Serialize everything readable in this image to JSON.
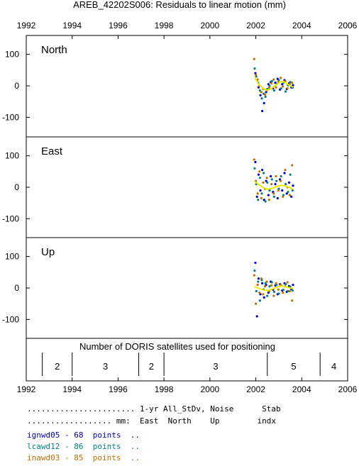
{
  "chart_data": {
    "type": "scatter",
    "title": "AREB_42202S006: Residuals to linear motion (mm)",
    "x_ticks": [
      "1992",
      "1994",
      "1996",
      "1998",
      "2000",
      "2002",
      "2004",
      "2006"
    ],
    "xlim": [
      1992,
      2006
    ],
    "y_ticks": [
      "100",
      "0",
      "-100"
    ],
    "panels": [
      {
        "label": "North",
        "ylim": [
          -160,
          160
        ],
        "series": [
          {
            "color": "#0000c0",
            "points": [
              [
                2001.98,
                40
              ],
              [
                2002.05,
                18
              ],
              [
                2002.12,
                -5
              ],
              [
                2002.2,
                -30
              ],
              [
                2002.28,
                -80
              ],
              [
                2002.36,
                -55
              ],
              [
                2002.45,
                -20
              ],
              [
                2002.55,
                5
              ],
              [
                2002.65,
                12
              ],
              [
                2002.75,
                -8
              ],
              [
                2002.85,
                10
              ],
              [
                2002.95,
                22
              ],
              [
                2003.05,
                -12
              ],
              [
                2003.15,
                5
              ],
              [
                2003.25,
                18
              ],
              [
                2003.35,
                -10
              ],
              [
                2003.45,
                8
              ],
              [
                2003.55,
                -5
              ],
              [
                2003.62,
                2
              ]
            ]
          },
          {
            "color": "#008080",
            "points": [
              [
                2001.95,
                55
              ],
              [
                2002.02,
                30
              ],
              [
                2002.1,
                10
              ],
              [
                2002.18,
                -15
              ],
              [
                2002.26,
                -40
              ],
              [
                2002.34,
                -25
              ],
              [
                2002.42,
                -35
              ],
              [
                2002.5,
                -10
              ],
              [
                2002.6,
                0
              ],
              [
                2002.7,
                15
              ],
              [
                2002.8,
                -15
              ],
              [
                2002.9,
                5
              ],
              [
                2003.0,
                18
              ],
              [
                2003.1,
                -8
              ],
              [
                2003.2,
                10
              ],
              [
                2003.3,
                -18
              ],
              [
                2003.4,
                2
              ],
              [
                2003.5,
                12
              ],
              [
                2003.6,
                -6
              ]
            ]
          },
          {
            "color": "#c07000",
            "points": [
              [
                2001.93,
                85
              ],
              [
                2002.0,
                35
              ],
              [
                2002.08,
                20
              ],
              [
                2002.16,
                0
              ],
              [
                2002.24,
                -20
              ],
              [
                2002.32,
                -10
              ],
              [
                2002.4,
                -28
              ],
              [
                2002.48,
                -15
              ],
              [
                2002.58,
                -5
              ],
              [
                2002.68,
                8
              ],
              [
                2002.78,
                20
              ],
              [
                2002.88,
                -5
              ],
              [
                2002.98,
                12
              ],
              [
                2003.08,
                25
              ],
              [
                2003.18,
                -2
              ],
              [
                2003.28,
                15
              ],
              [
                2003.38,
                -8
              ],
              [
                2003.48,
                5
              ],
              [
                2003.58,
                10
              ]
            ]
          }
        ],
        "fit": [
          [
            2001.95,
            28
          ],
          [
            2002.1,
            8
          ],
          [
            2002.3,
            -8
          ],
          [
            2002.5,
            -14
          ],
          [
            2002.7,
            -8
          ],
          [
            2002.9,
            4
          ],
          [
            2003.1,
            14
          ],
          [
            2003.3,
            10
          ],
          [
            2003.5,
            0
          ],
          [
            2003.62,
            -4
          ]
        ]
      },
      {
        "label": "East",
        "ylim": [
          -160,
          160
        ],
        "series": [
          {
            "color": "#0000c0",
            "points": [
              [
                2001.98,
                80
              ],
              [
                2002.05,
                -30
              ],
              [
                2002.12,
                40
              ],
              [
                2002.2,
                -10
              ],
              [
                2002.28,
                55
              ],
              [
                2002.36,
                -40
              ],
              [
                2002.45,
                20
              ],
              [
                2002.55,
                -25
              ],
              [
                2002.65,
                35
              ],
              [
                2002.75,
                -15
              ],
              [
                2002.85,
                10
              ],
              [
                2002.95,
                -35
              ],
              [
                2003.05,
                25
              ],
              [
                2003.15,
                -10
              ],
              [
                2003.25,
                45
              ],
              [
                2003.35,
                -20
              ],
              [
                2003.45,
                15
              ],
              [
                2003.55,
                -30
              ],
              [
                2003.62,
                5
              ]
            ]
          },
          {
            "color": "#008080",
            "points": [
              [
                2001.95,
                60
              ],
              [
                2002.02,
                10
              ],
              [
                2002.1,
                -40
              ],
              [
                2002.18,
                30
              ],
              [
                2002.26,
                -20
              ],
              [
                2002.34,
                45
              ],
              [
                2002.42,
                -45
              ],
              [
                2002.5,
                15
              ],
              [
                2002.6,
                -10
              ],
              [
                2002.7,
                25
              ],
              [
                2002.8,
                -30
              ],
              [
                2002.9,
                20
              ],
              [
                2003.0,
                -5
              ],
              [
                2003.1,
                35
              ],
              [
                2003.2,
                -25
              ],
              [
                2003.3,
                10
              ],
              [
                2003.4,
                -15
              ],
              [
                2003.5,
                40
              ],
              [
                2003.6,
                -10
              ]
            ]
          },
          {
            "color": "#c07000",
            "points": [
              [
                2001.93,
                88
              ],
              [
                2002.0,
                20
              ],
              [
                2002.08,
                -20
              ],
              [
                2002.16,
                50
              ],
              [
                2002.24,
                -35
              ],
              [
                2002.32,
                15
              ],
              [
                2002.4,
                -5
              ],
              [
                2002.48,
                30
              ],
              [
                2002.58,
                -40
              ],
              [
                2002.68,
                10
              ],
              [
                2002.78,
                -20
              ],
              [
                2002.88,
                35
              ],
              [
                2002.98,
                -10
              ],
              [
                2003.08,
                20
              ],
              [
                2003.18,
                -30
              ],
              [
                2003.28,
                55
              ],
              [
                2003.38,
                0
              ],
              [
                2003.48,
                -25
              ],
              [
                2003.58,
                70
              ]
            ]
          }
        ],
        "fit": [
          [
            2001.95,
            18
          ],
          [
            2002.1,
            10
          ],
          [
            2002.3,
            0
          ],
          [
            2002.5,
            -6
          ],
          [
            2002.7,
            -4
          ],
          [
            2002.9,
            2
          ],
          [
            2003.1,
            6
          ],
          [
            2003.3,
            4
          ],
          [
            2003.5,
            -2
          ],
          [
            2003.62,
            -6
          ]
        ]
      },
      {
        "label": "Up",
        "ylim": [
          -160,
          160
        ],
        "series": [
          {
            "color": "#0000c0",
            "points": [
              [
                2001.98,
                80
              ],
              [
                2002.05,
                -90
              ],
              [
                2002.12,
                30
              ],
              [
                2002.2,
                -20
              ],
              [
                2002.28,
                15
              ],
              [
                2002.36,
                -30
              ],
              [
                2002.45,
                10
              ],
              [
                2002.55,
                -15
              ],
              [
                2002.65,
                20
              ],
              [
                2002.75,
                -5
              ],
              [
                2002.85,
                8
              ],
              [
                2002.95,
                -20
              ],
              [
                2003.05,
                12
              ],
              [
                2003.15,
                -8
              ],
              [
                2003.25,
                15
              ],
              [
                2003.35,
                -12
              ],
              [
                2003.45,
                6
              ],
              [
                2003.55,
                -4
              ],
              [
                2003.62,
                10
              ]
            ]
          },
          {
            "color": "#008080",
            "points": [
              [
                2001.95,
                55
              ],
              [
                2002.02,
                -10
              ],
              [
                2002.1,
                20
              ],
              [
                2002.18,
                -40
              ],
              [
                2002.26,
                25
              ],
              [
                2002.34,
                -5
              ],
              [
                2002.42,
                15
              ],
              [
                2002.5,
                -25
              ],
              [
                2002.6,
                5
              ],
              [
                2002.7,
                18
              ],
              [
                2002.8,
                -12
              ],
              [
                2002.9,
                10
              ],
              [
                2003.0,
                -18
              ],
              [
                2003.1,
                8
              ],
              [
                2003.2,
                -6
              ],
              [
                2003.3,
                12
              ],
              [
                2003.4,
                -10
              ],
              [
                2003.5,
                4
              ],
              [
                2003.6,
                -8
              ]
            ]
          },
          {
            "color": "#c07000",
            "points": [
              [
                2001.93,
                40
              ],
              [
                2002.0,
                -50
              ],
              [
                2002.08,
                10
              ],
              [
                2002.16,
                -15
              ],
              [
                2002.24,
                30
              ],
              [
                2002.32,
                -20
              ],
              [
                2002.4,
                5
              ],
              [
                2002.48,
                20
              ],
              [
                2002.58,
                -10
              ],
              [
                2002.68,
                8
              ],
              [
                2002.78,
                -25
              ],
              [
                2002.88,
                15
              ],
              [
                2002.98,
                -5
              ],
              [
                2003.08,
                10
              ],
              [
                2003.18,
                -15
              ],
              [
                2003.28,
                5
              ],
              [
                2003.38,
                18
              ],
              [
                2003.48,
                -10
              ],
              [
                2003.58,
                -40
              ]
            ]
          }
        ],
        "fit": [
          [
            2001.95,
            4
          ],
          [
            2002.1,
            0
          ],
          [
            2002.3,
            -6
          ],
          [
            2002.5,
            -8
          ],
          [
            2002.7,
            -4
          ],
          [
            2002.9,
            2
          ],
          [
            2003.1,
            6
          ],
          [
            2003.3,
            4
          ],
          [
            2003.5,
            0
          ],
          [
            2003.62,
            -2
          ]
        ]
      }
    ],
    "satellites": {
      "title": "Number of DORIS satellites used for positioning",
      "segments": [
        {
          "start": 1992.7,
          "end": 1994.0,
          "label": "2"
        },
        {
          "start": 1994.0,
          "end": 1996.9,
          "label": "3"
        },
        {
          "start": 1996.9,
          "end": 1998.0,
          "label": "2"
        },
        {
          "start": 1998.0,
          "end": 2002.5,
          "label": "3"
        },
        {
          "start": 2002.5,
          "end": 2004.8,
          "label": "5"
        },
        {
          "start": 2004.8,
          "end": 2006.0,
          "label": "4"
        }
      ]
    },
    "fit_color": "#e8e800",
    "table": {
      "header1": "....................... 1-yr All_StDv, Noise      Stab",
      "header2": ".................. mm:  East  North    Up        indx",
      "rows": [
        {
          "text": "ignwd05 - 68  points  ..",
          "color": "#0000c0"
        },
        {
          "text": "lcawd12 - 86  points  ..",
          "color": "#008080"
        },
        {
          "text": "inawd03 - 85  points  ..",
          "color": "#c07000"
        }
      ]
    }
  }
}
